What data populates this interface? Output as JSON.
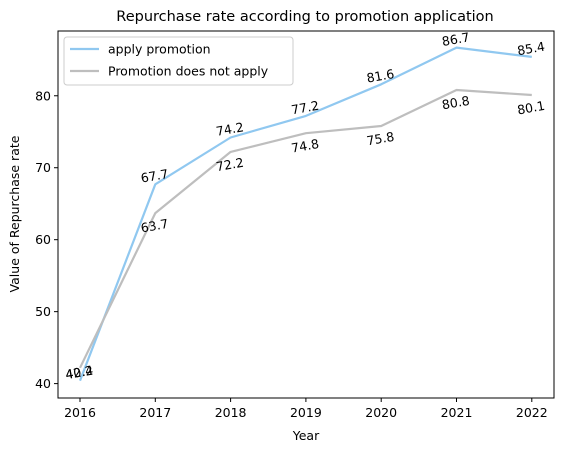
{
  "chart_data": {
    "type": "line",
    "title": "Repurchase rate according to promotion application",
    "xlabel": "Year",
    "ylabel": "Value of Repurchase rate",
    "categories": [
      "2016",
      "2017",
      "2018",
      "2019",
      "2020",
      "2021",
      "2022"
    ],
    "y_ticks": [
      "40",
      "50",
      "60",
      "70",
      "80"
    ],
    "ylim": [
      38.0,
      89.0
    ],
    "grid": false,
    "legend_position": "top-left",
    "series": [
      {
        "name": "apply promotion",
        "color": "#90c8f0",
        "values": [
          40.4,
          67.7,
          74.2,
          77.2,
          81.6,
          86.7,
          85.4
        ],
        "labels": [
          "40.4",
          "67.7",
          "74.2",
          "77.2",
          "81.6",
          "86.7",
          "85.4"
        ]
      },
      {
        "name": "Promotion does not apply",
        "color": "#bebebe",
        "values": [
          42.2,
          63.7,
          72.2,
          74.8,
          75.8,
          80.8,
          80.1
        ],
        "labels": [
          "42.2",
          "63.7",
          "72.2",
          "74.8",
          "75.8",
          "80.8",
          "80.1"
        ]
      }
    ]
  }
}
